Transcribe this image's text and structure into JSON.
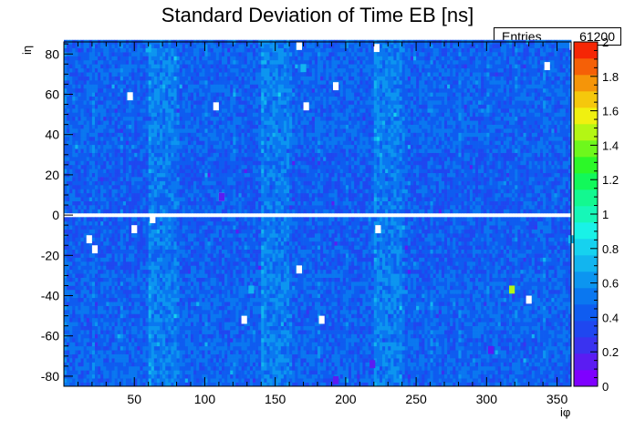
{
  "chart_data": {
    "type": "heatmap",
    "title": "Standard Deviation of Time EB [ns]",
    "xlabel": "iφ",
    "ylabel": "iη",
    "xlim": [
      0,
      360
    ],
    "ylim": [
      -85,
      86
    ],
    "x_ticks": [
      50,
      100,
      150,
      200,
      250,
      300,
      350
    ],
    "y_ticks": [
      -80,
      -60,
      -40,
      -20,
      0,
      20,
      40,
      60,
      80
    ],
    "z_range": [
      0,
      2
    ],
    "z_ticks": [
      0,
      0.2,
      0.4,
      0.6,
      0.8,
      1,
      1.2,
      1.4,
      1.6,
      1.8,
      2
    ],
    "z_tick_labels": [
      "0",
      "0.2",
      "0.4",
      "0.6",
      "0.8",
      "1",
      "1.2",
      "1.4",
      "1.6",
      "1.8",
      "2"
    ],
    "palette": [
      "#7f00ff",
      "#5b1cf2",
      "#3a33f0",
      "#1f47f0",
      "#0f5cf0",
      "#0a77f0",
      "#0c95f0",
      "#12b5ef",
      "#16d2ef",
      "#19f2e7",
      "#16f7b8",
      "#13f890",
      "#12f85a",
      "#2cf828",
      "#6ef81c",
      "#b4f614",
      "#f0f010",
      "#f5c80c",
      "#f59509",
      "#f56007",
      "#f52605"
    ],
    "base_mean": 0.45,
    "bright_phi_bands": [
      [
        60,
        80
      ],
      [
        140,
        160
      ],
      [
        220,
        240
      ]
    ],
    "bright_band_mean": 0.55,
    "empty_eta_row": 0,
    "stats": {
      "label": "Entries",
      "value": "61200"
    },
    "hot_cells": [
      {
        "phi": 133,
        "eta": -37,
        "value": 0.7
      },
      {
        "phi": 318,
        "eta": -37,
        "value": 1.5
      },
      {
        "phi": 303,
        "eta": -67,
        "value": 0.1
      },
      {
        "phi": 193,
        "eta": -82,
        "value": 0.1
      },
      {
        "phi": 219,
        "eta": -74,
        "value": 0.15
      },
      {
        "phi": 112,
        "eta": 9,
        "value": 0.1
      },
      {
        "phi": 360,
        "eta": -12,
        "value": 0.7
      },
      {
        "phi": 170,
        "eta": 73,
        "value": 0.7
      }
    ],
    "dead_cells": [
      {
        "phi": 50,
        "eta": -7
      },
      {
        "phi": 63,
        "eta": -2
      },
      {
        "phi": 18,
        "eta": -12
      },
      {
        "phi": 22,
        "eta": -17
      },
      {
        "phi": 223,
        "eta": -7
      },
      {
        "phi": 167,
        "eta": -27
      },
      {
        "phi": 330,
        "eta": -42
      },
      {
        "phi": 128,
        "eta": -52
      },
      {
        "phi": 183,
        "eta": -52
      },
      {
        "phi": 47,
        "eta": 59
      },
      {
        "phi": 108,
        "eta": 54
      },
      {
        "phi": 172,
        "eta": 54
      },
      {
        "phi": 167,
        "eta": 84
      },
      {
        "phi": 222,
        "eta": 83
      },
      {
        "phi": 343,
        "eta": 74
      },
      {
        "phi": 193,
        "eta": 64
      },
      {
        "phi": 112,
        "eta": 9
      },
      {
        "phi": 361,
        "eta": 84
      }
    ]
  }
}
